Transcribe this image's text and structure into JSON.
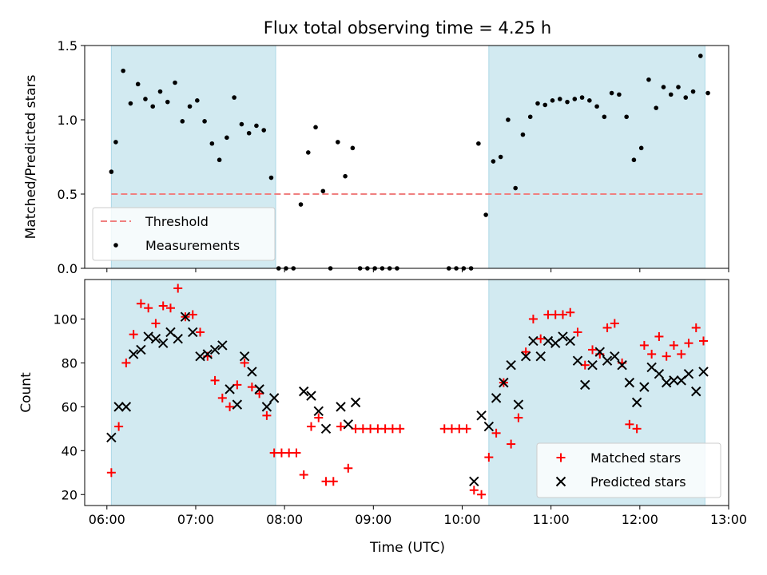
{
  "figure": {
    "title": "Flux total observing time = 4.25 h",
    "xlabel": "Time (UTC)",
    "xticks": [
      "06:00",
      "07:00",
      "08:00",
      "09:00",
      "10:00",
      "11:00",
      "12:00",
      "13:00"
    ],
    "colors": {
      "band": "#add8e6",
      "threshold": "#f08080",
      "matched": "#ff0000",
      "predicted": "#000000",
      "points": "#000000"
    }
  },
  "chart_data": [
    {
      "type": "scatter",
      "ylabel": "Matched/Predicted stars",
      "xlim": [
        "05:45",
        "13:00"
      ],
      "ylim": [
        0,
        1.5
      ],
      "yticks": [
        "0.0",
        "0.5",
        "1.0",
        "1.5"
      ],
      "shaded_intervals": [
        [
          "06:03",
          "07:54"
        ],
        [
          "10:18",
          "12:44"
        ]
      ],
      "threshold": {
        "name": "Threshold",
        "value": 0.5
      },
      "legend": {
        "position": "lower-left",
        "entries": [
          "Threshold",
          "Measurements"
        ]
      },
      "series": [
        {
          "name": "Measurements",
          "points": [
            [
              "06:03",
              0.65
            ],
            [
              "06:06",
              0.85
            ],
            [
              "06:11",
              1.33
            ],
            [
              "06:16",
              1.11
            ],
            [
              "06:21",
              1.24
            ],
            [
              "06:26",
              1.14
            ],
            [
              "06:31",
              1.09
            ],
            [
              "06:36",
              1.19
            ],
            [
              "06:41",
              1.12
            ],
            [
              "06:46",
              1.25
            ],
            [
              "06:51",
              0.99
            ],
            [
              "06:56",
              1.09
            ],
            [
              "07:01",
              1.13
            ],
            [
              "07:06",
              0.99
            ],
            [
              "07:11",
              0.84
            ],
            [
              "07:16",
              0.73
            ],
            [
              "07:21",
              0.88
            ],
            [
              "07:26",
              1.15
            ],
            [
              "07:31",
              0.97
            ],
            [
              "07:36",
              0.91
            ],
            [
              "07:41",
              0.96
            ],
            [
              "07:46",
              0.93
            ],
            [
              "07:51",
              0.61
            ],
            [
              "07:56",
              0.0
            ],
            [
              "08:01",
              0.0
            ],
            [
              "08:06",
              0.0
            ],
            [
              "08:11",
              0.43
            ],
            [
              "08:16",
              0.78
            ],
            [
              "08:21",
              0.95
            ],
            [
              "08:26",
              0.52
            ],
            [
              "08:31",
              0.0
            ],
            [
              "08:36",
              0.85
            ],
            [
              "08:41",
              0.62
            ],
            [
              "08:46",
              0.81
            ],
            [
              "08:51",
              0.0
            ],
            [
              "08:56",
              0.0
            ],
            [
              "09:01",
              0.0
            ],
            [
              "09:06",
              0.0
            ],
            [
              "09:11",
              0.0
            ],
            [
              "09:16",
              0.0
            ],
            [
              "09:51",
              0.0
            ],
            [
              "09:56",
              0.0
            ],
            [
              "10:01",
              0.0
            ],
            [
              "10:06",
              0.0
            ],
            [
              "10:11",
              0.84
            ],
            [
              "10:16",
              0.36
            ],
            [
              "10:21",
              0.72
            ],
            [
              "10:26",
              0.75
            ],
            [
              "10:31",
              1.0
            ],
            [
              "10:36",
              0.54
            ],
            [
              "10:41",
              0.9
            ],
            [
              "10:46",
              1.02
            ],
            [
              "10:51",
              1.11
            ],
            [
              "10:56",
              1.1
            ],
            [
              "11:01",
              1.13
            ],
            [
              "11:06",
              1.14
            ],
            [
              "11:11",
              1.12
            ],
            [
              "11:16",
              1.14
            ],
            [
              "11:21",
              1.15
            ],
            [
              "11:26",
              1.13
            ],
            [
              "11:31",
              1.09
            ],
            [
              "11:36",
              1.02
            ],
            [
              "11:41",
              1.18
            ],
            [
              "11:46",
              1.17
            ],
            [
              "11:51",
              1.02
            ],
            [
              "11:56",
              0.73
            ],
            [
              "12:01",
              0.81
            ],
            [
              "12:06",
              1.27
            ],
            [
              "12:11",
              1.08
            ],
            [
              "12:16",
              1.22
            ],
            [
              "12:21",
              1.17
            ],
            [
              "12:26",
              1.22
            ],
            [
              "12:31",
              1.15
            ],
            [
              "12:36",
              1.19
            ],
            [
              "12:41",
              1.43
            ],
            [
              "12:46",
              1.18
            ]
          ]
        }
      ]
    },
    {
      "type": "scatter",
      "ylabel": "Count",
      "xlabel": "Time (UTC)",
      "xlim": [
        "05:45",
        "13:00"
      ],
      "ylim": [
        15,
        118
      ],
      "yticks": [
        "20",
        "40",
        "60",
        "80",
        "100"
      ],
      "shaded_intervals": [
        [
          "06:03",
          "07:54"
        ],
        [
          "10:18",
          "12:44"
        ]
      ],
      "legend": {
        "position": "lower-right",
        "entries": [
          "Matched stars",
          "Predicted stars"
        ]
      },
      "series": [
        {
          "name": "Matched stars",
          "marker": "plus",
          "points": [
            [
              "06:03",
              30
            ],
            [
              "06:08",
              51
            ],
            [
              "06:13",
              80
            ],
            [
              "06:18",
              93
            ],
            [
              "06:23",
              107
            ],
            [
              "06:28",
              105
            ],
            [
              "06:33",
              98
            ],
            [
              "06:38",
              106
            ],
            [
              "06:43",
              105
            ],
            [
              "06:48",
              114
            ],
            [
              "06:53",
              101
            ],
            [
              "06:58",
              102
            ],
            [
              "07:03",
              94
            ],
            [
              "07:08",
              83
            ],
            [
              "07:13",
              72
            ],
            [
              "07:18",
              64
            ],
            [
              "07:23",
              60
            ],
            [
              "07:28",
              70
            ],
            [
              "07:33",
              80
            ],
            [
              "07:38",
              69
            ],
            [
              "07:43",
              66
            ],
            [
              "07:48",
              56
            ],
            [
              "07:53",
              39
            ],
            [
              "07:58",
              39
            ],
            [
              "08:03",
              39
            ],
            [
              "08:08",
              39
            ],
            [
              "08:13",
              29
            ],
            [
              "08:18",
              51
            ],
            [
              "08:23",
              55
            ],
            [
              "08:28",
              26
            ],
            [
              "08:33",
              26
            ],
            [
              "08:38",
              51
            ],
            [
              "08:43",
              32
            ],
            [
              "08:48",
              50
            ],
            [
              "08:53",
              50
            ],
            [
              "08:58",
              50
            ],
            [
              "09:03",
              50
            ],
            [
              "09:08",
              50
            ],
            [
              "09:13",
              50
            ],
            [
              "09:18",
              50
            ],
            [
              "09:48",
              50
            ],
            [
              "09:53",
              50
            ],
            [
              "09:58",
              50
            ],
            [
              "10:03",
              50
            ],
            [
              "10:08",
              22
            ],
            [
              "10:13",
              20
            ],
            [
              "10:18",
              37
            ],
            [
              "10:23",
              48
            ],
            [
              "10:28",
              71
            ],
            [
              "10:33",
              43
            ],
            [
              "10:38",
              55
            ],
            [
              "10:43",
              85
            ],
            [
              "10:48",
              100
            ],
            [
              "10:53",
              91
            ],
            [
              "10:58",
              102
            ],
            [
              "11:03",
              102
            ],
            [
              "11:08",
              102
            ],
            [
              "11:13",
              103
            ],
            [
              "11:18",
              94
            ],
            [
              "11:23",
              79
            ],
            [
              "11:28",
              86
            ],
            [
              "11:33",
              84
            ],
            [
              "11:38",
              96
            ],
            [
              "11:43",
              98
            ],
            [
              "11:48",
              80
            ],
            [
              "11:53",
              52
            ],
            [
              "11:58",
              50
            ],
            [
              "12:03",
              88
            ],
            [
              "12:08",
              84
            ],
            [
              "12:13",
              92
            ],
            [
              "12:18",
              83
            ],
            [
              "12:23",
              88
            ],
            [
              "12:28",
              84
            ],
            [
              "12:33",
              89
            ],
            [
              "12:38",
              96
            ],
            [
              "12:43",
              90
            ]
          ]
        },
        {
          "name": "Predicted stars",
          "marker": "x",
          "points": [
            [
              "06:03",
              46
            ],
            [
              "06:08",
              60
            ],
            [
              "06:13",
              60
            ],
            [
              "06:18",
              84
            ],
            [
              "06:23",
              86
            ],
            [
              "06:28",
              92
            ],
            [
              "06:33",
              91
            ],
            [
              "06:38",
              89
            ],
            [
              "06:43",
              94
            ],
            [
              "06:48",
              91
            ],
            [
              "06:53",
              101
            ],
            [
              "06:58",
              94
            ],
            [
              "07:03",
              83
            ],
            [
              "07:08",
              84
            ],
            [
              "07:13",
              86
            ],
            [
              "07:18",
              88
            ],
            [
              "07:23",
              68
            ],
            [
              "07:28",
              61
            ],
            [
              "07:33",
              83
            ],
            [
              "07:38",
              76
            ],
            [
              "07:43",
              68
            ],
            [
              "07:48",
              60
            ],
            [
              "07:53",
              64
            ],
            [
              "08:13",
              67
            ],
            [
              "08:18",
              65
            ],
            [
              "08:23",
              58
            ],
            [
              "08:28",
              50
            ],
            [
              "08:38",
              60
            ],
            [
              "08:43",
              52
            ],
            [
              "08:48",
              62
            ],
            [
              "10:08",
              26
            ],
            [
              "10:13",
              56
            ],
            [
              "10:18",
              51
            ],
            [
              "10:23",
              64
            ],
            [
              "10:28",
              71
            ],
            [
              "10:33",
              79
            ],
            [
              "10:38",
              61
            ],
            [
              "10:43",
              83
            ],
            [
              "10:48",
              90
            ],
            [
              "10:53",
              83
            ],
            [
              "10:58",
              90
            ],
            [
              "11:03",
              89
            ],
            [
              "11:08",
              92
            ],
            [
              "11:13",
              90
            ],
            [
              "11:18",
              81
            ],
            [
              "11:23",
              70
            ],
            [
              "11:28",
              79
            ],
            [
              "11:33",
              85
            ],
            [
              "11:38",
              81
            ],
            [
              "11:43",
              83
            ],
            [
              "11:48",
              79
            ],
            [
              "11:53",
              71
            ],
            [
              "11:58",
              62
            ],
            [
              "12:03",
              69
            ],
            [
              "12:08",
              78
            ],
            [
              "12:13",
              75
            ],
            [
              "12:18",
              71
            ],
            [
              "12:23",
              72
            ],
            [
              "12:28",
              72
            ],
            [
              "12:33",
              75
            ],
            [
              "12:38",
              67
            ],
            [
              "12:43",
              76
            ]
          ]
        }
      ]
    }
  ]
}
